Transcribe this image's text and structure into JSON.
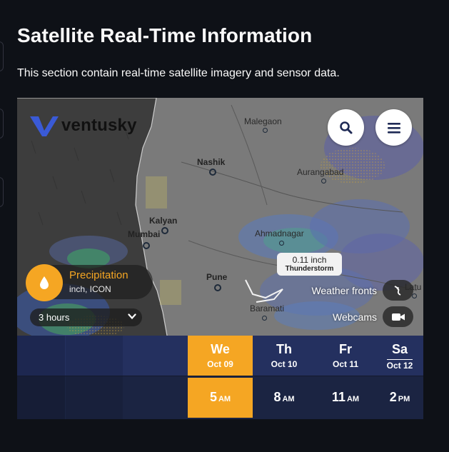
{
  "page": {
    "title": "Satellite Real-Time Information",
    "description": "This section contain real-time satellite imagery and sensor data."
  },
  "map": {
    "brand": "ventusky",
    "cities": [
      {
        "name": "Malegaon"
      },
      {
        "name": "Nashik"
      },
      {
        "name": "Aurangabad"
      },
      {
        "name": "Kalyan"
      },
      {
        "name": "Mumbai"
      },
      {
        "name": "Ahmadnagar"
      },
      {
        "name": "Pune"
      },
      {
        "name": "Baramati"
      },
      {
        "name": "Latu"
      }
    ],
    "layer": {
      "title": "Precipitation",
      "subtitle": "inch, ICON",
      "icon": "droplet-icon"
    },
    "interval": {
      "selected": "3 hours"
    },
    "tooltip": {
      "value": "0.11 inch",
      "label": "Thunderstorm"
    },
    "toggles": [
      {
        "label": "Weather fronts",
        "icon": "front-icon"
      },
      {
        "label": "Webcams",
        "icon": "camera-icon"
      }
    ],
    "buttons": {
      "search_icon": "search-icon",
      "menu_icon": "menu-icon"
    }
  },
  "timeline": {
    "days": [
      {
        "name": "We",
        "date": "Oct 09",
        "active": true
      },
      {
        "name": "Th",
        "date": "Oct 10",
        "active": false
      },
      {
        "name": "Fr",
        "date": "Oct 11",
        "active": false
      },
      {
        "name": "Sa",
        "date": "Oct 12",
        "active": false
      }
    ],
    "times": [
      {
        "hour": "5",
        "period": "AM",
        "active": true
      },
      {
        "hour": "8",
        "period": "AM",
        "active": false
      },
      {
        "hour": "11",
        "period": "AM",
        "active": false
      },
      {
        "hour": "2",
        "period": "PM",
        "active": false
      }
    ]
  },
  "colors": {
    "background": "#0e1117",
    "accent": "#f5a623",
    "timeline_day": "#24305f",
    "timeline_time": "#1b2442"
  }
}
